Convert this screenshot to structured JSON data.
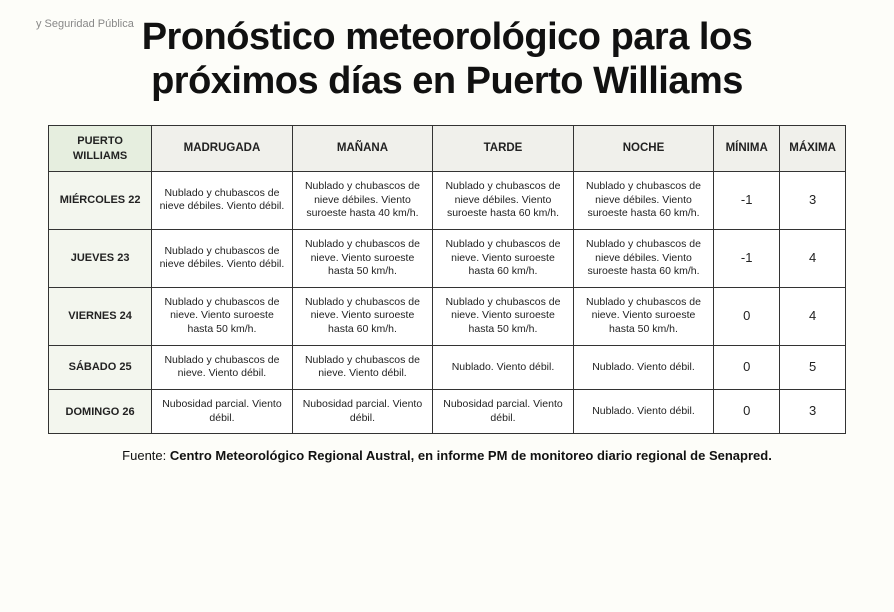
{
  "header_fragment": "y Seguridad Pública",
  "title_line1": "Pronóstico meteorológico para los",
  "title_line2": "próximos días en Puerto Williams",
  "table": {
    "corner_label": "PUERTO WILLIAMS",
    "columns": [
      "MADRUGADA",
      "MAÑANA",
      "TARDE",
      "NOCHE",
      "MÍNIMA",
      "MÁXIMA"
    ],
    "rows": [
      {
        "day": "MIÉRCOLES 22",
        "cells": [
          "Nublado y chubascos de nieve débiles. Viento débil.",
          "Nublado y chubascos de nieve débiles. Viento suroeste hasta 40 km/h.",
          "Nublado y chubascos de nieve débiles. Viento suroeste hasta 60 km/h.",
          "Nublado y chubascos de nieve débiles. Viento suroeste hasta 60 km/h."
        ],
        "min": "-1",
        "max": "3"
      },
      {
        "day": "JUEVES 23",
        "cells": [
          "Nublado y chubascos de nieve débiles. Viento débil.",
          "Nublado y chubascos de nieve. Viento suroeste hasta 50 km/h.",
          "Nublado y chubascos de nieve. Viento suroeste hasta 60 km/h.",
          "Nublado y chubascos de nieve débiles. Viento suroeste hasta 60 km/h."
        ],
        "min": "-1",
        "max": "4"
      },
      {
        "day": "VIERNES 24",
        "cells": [
          "Nublado y chubascos de nieve. Viento suroeste hasta 50 km/h.",
          "Nublado y chubascos de nieve. Viento suroeste hasta 60 km/h.",
          "Nublado y chubascos de nieve. Viento suroeste hasta 50 km/h.",
          "Nublado y chubascos de nieve. Viento suroeste hasta 50 km/h."
        ],
        "min": "0",
        "max": "4"
      },
      {
        "day": "SÁBADO 25",
        "cells": [
          "Nublado y chubascos de nieve. Viento débil.",
          "Nublado y chubascos de nieve. Viento débil.",
          "Nublado. Viento débil.",
          "Nublado. Viento débil."
        ],
        "min": "0",
        "max": "5"
      },
      {
        "day": "DOMINGO 26",
        "cells": [
          "Nubosidad parcial. Viento débil.",
          "Nubosidad parcial. Viento débil.",
          "Nubosidad parcial. Viento débil.",
          "Nublado. Viento débil."
        ],
        "min": "0",
        "max": "3"
      }
    ]
  },
  "source_label": "Fuente: ",
  "source_bold": "Centro Meteorológico Regional Austral, en informe PM de monitoreo diario regional de Senapred.",
  "colors": {
    "background": "#fdfdf9",
    "header_bg": "#f0f0eb",
    "corner_bg": "#e6eedf",
    "day_bg": "#f3f6ee",
    "border": "#333333",
    "text": "#1a1a1a",
    "fragment": "#888888"
  }
}
